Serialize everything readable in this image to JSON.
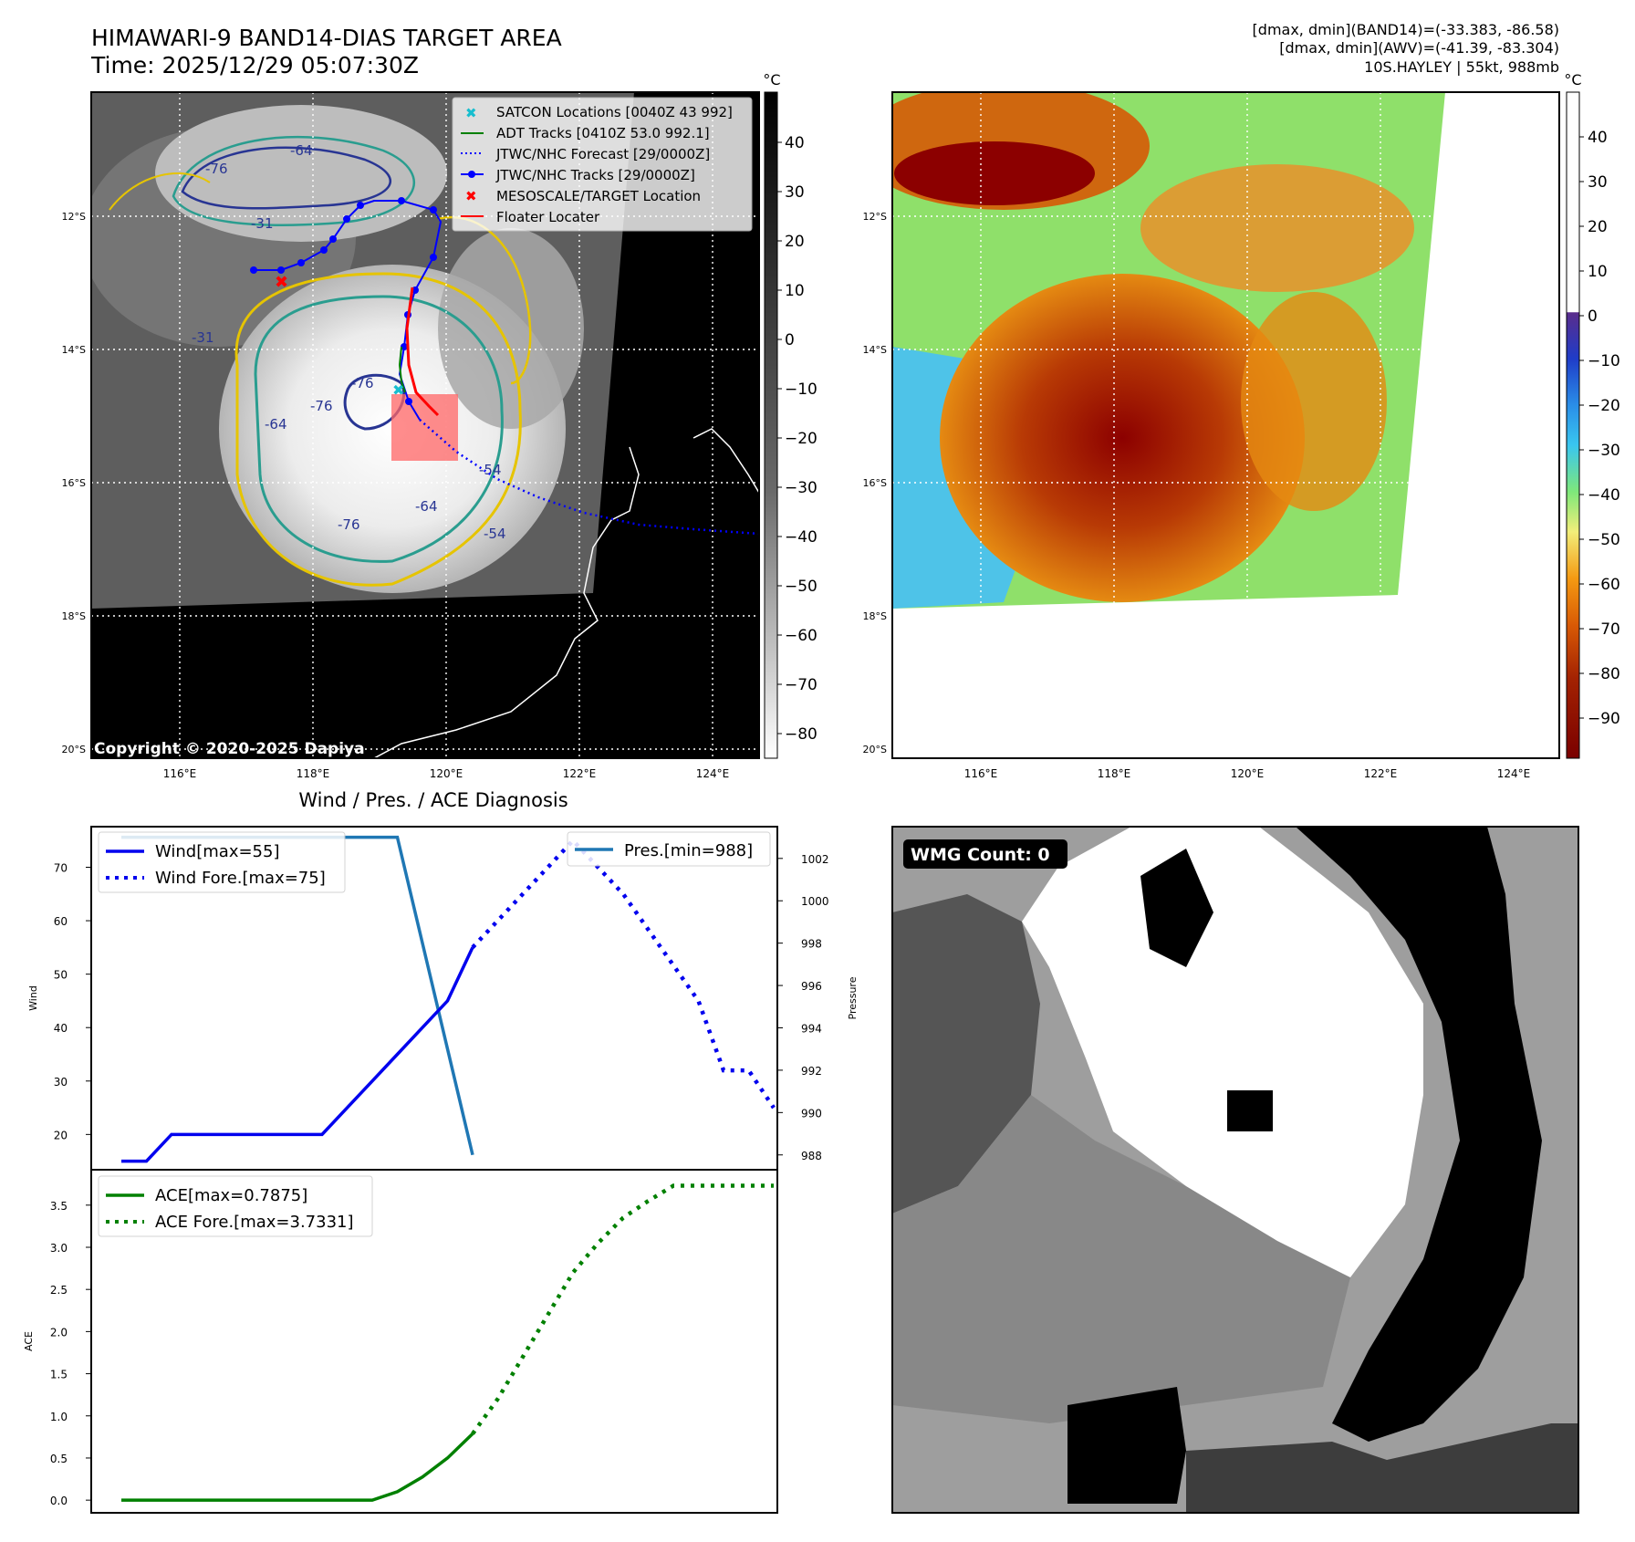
{
  "header": {
    "title_line1": "HIMAWARI-9 BAND14-DIAS TARGET AREA",
    "title_line2": "Time: 2025/12/29 05:07:30Z",
    "info_line1": "[dmax, dmin](BAND14)=(-33.383, -86.58)",
    "info_line2": "[dmax, dmin](AWV)=(-41.39, -83.304)",
    "info_line3": "10S.HAYLEY | 55kt, 988mb"
  },
  "colors": {
    "wind": "#0000ee",
    "pressure": "#1f77b4",
    "ace": "#008000",
    "track": "#0000ff",
    "adt": "#008000",
    "satcon": "#17becf",
    "target": "#ff0000"
  },
  "map": {
    "lat_labels": [
      "12°S",
      "14°S",
      "16°S",
      "18°S",
      "20°S"
    ],
    "lon_labels": [
      "116°E",
      "118°E",
      "120°E",
      "122°E",
      "124°E"
    ],
    "unit": "°C",
    "cbar1_ticks": [
      "40",
      "30",
      "20",
      "10",
      "0",
      "−10",
      "−20",
      "−30",
      "−40",
      "−50",
      "−60",
      "−70",
      "−80"
    ],
    "cbar2_ticks": [
      "40",
      "30",
      "20",
      "10",
      "0",
      "−10",
      "−20",
      "−30",
      "−40",
      "−50",
      "−60",
      "−70",
      "−80",
      "−90"
    ],
    "contour_labels": [
      "-76",
      "-64",
      "-31",
      "-76",
      "-64",
      "-76",
      "-54",
      "-31",
      "-54",
      "-64",
      "-76"
    ],
    "copyright": "Copyright © 2020-2025 Dapiya",
    "legend": [
      "SATCON Locations [0040Z 43 992]",
      "ADT Tracks [0410Z 53.0 992.1]",
      "JTWC/NHC Forecast [29/0000Z]",
      "JTWC/NHC Tracks [29/0000Z]",
      "MESOSCALE/TARGET Location",
      "Floater Locater"
    ]
  },
  "diagnosis": {
    "title": "Wind / Pres. / ACE Diagnosis",
    "wind_ylabel": "Wind",
    "pres_ylabel": "Pressure",
    "ace_ylabel": "ACE",
    "legend_wind": "Wind[max=55]",
    "legend_wind_fore": "Wind Fore.[max=75]",
    "legend_pres": "Pres.[min=988]",
    "legend_ace": "ACE[max=0.7875]",
    "legend_ace_fore": "ACE Fore.[max=3.7331]"
  },
  "wmg": {
    "label": "WMG Count: 0"
  },
  "chart_data": [
    {
      "type": "line",
      "title": "Wind / Pres. / ACE Diagnosis",
      "ylabel": "Wind",
      "ylim": [
        13.4,
        77.6
      ],
      "yticks": [
        20,
        30,
        40,
        50,
        60,
        70
      ],
      "x": [
        0,
        1,
        2,
        3,
        4,
        5,
        6,
        7,
        8,
        9,
        10,
        11,
        12,
        13,
        14
      ],
      "series": [
        {
          "name": "Wind[max=55]",
          "x": [
            0,
            1,
            2,
            3,
            4,
            5,
            6,
            7,
            8,
            9,
            10,
            11,
            12,
            13,
            14
          ],
          "values": [
            15,
            15,
            20,
            20,
            20,
            20,
            20,
            20,
            20,
            25,
            30,
            35,
            40,
            45,
            55
          ]
        },
        {
          "name": "Wind Fore.[max=75]",
          "x": [
            14,
            18,
            20,
            23,
            24,
            25,
            26
          ],
          "values": [
            55,
            75,
            65,
            45,
            32,
            32,
            25
          ]
        }
      ]
    },
    {
      "type": "line",
      "ylabel": "Pressure",
      "ylim": [
        987.3,
        1003.5
      ],
      "yticks": [
        988,
        990,
        992,
        994,
        996,
        998,
        1000,
        1002
      ],
      "series": [
        {
          "name": "Pres.[min=988]",
          "x": [
            0,
            1,
            2,
            3,
            4,
            5,
            6,
            7,
            8,
            9,
            10,
            11,
            12,
            13,
            14
          ],
          "values": [
            1003,
            1003,
            1003,
            1003,
            1003,
            1003,
            1003,
            1003,
            1003,
            1003,
            1003,
            1003,
            998,
            993,
            988
          ]
        }
      ]
    },
    {
      "type": "line",
      "ylabel": "ACE",
      "ylim": [
        -0.15,
        3.92
      ],
      "yticks": [
        0.0,
        0.5,
        1.0,
        1.5,
        2.0,
        2.5,
        3.0,
        3.5
      ],
      "yticklabels": [
        "0.0",
        "0.5",
        "1.0",
        "1.5",
        "2.0",
        "2.5",
        "3.0",
        "3.5"
      ],
      "series": [
        {
          "name": "ACE[max=0.7875]",
          "x": [
            0,
            1,
            2,
            3,
            4,
            5,
            6,
            7,
            8,
            9,
            10,
            11,
            12,
            13,
            14
          ],
          "values": [
            0,
            0,
            0,
            0,
            0,
            0,
            0,
            0,
            0,
            0,
            0,
            0.1,
            0.275,
            0.5,
            0.7875
          ]
        },
        {
          "name": "ACE Fore.[max=3.7331]",
          "x": [
            14,
            15,
            16,
            17,
            18,
            19,
            20,
            21,
            22,
            23,
            24,
            25,
            26
          ],
          "values": [
            0.7875,
            1.2,
            1.7,
            2.2,
            2.7,
            3.05,
            3.35,
            3.55,
            3.73,
            3.73,
            3.73,
            3.73,
            3.73
          ]
        }
      ]
    }
  ]
}
